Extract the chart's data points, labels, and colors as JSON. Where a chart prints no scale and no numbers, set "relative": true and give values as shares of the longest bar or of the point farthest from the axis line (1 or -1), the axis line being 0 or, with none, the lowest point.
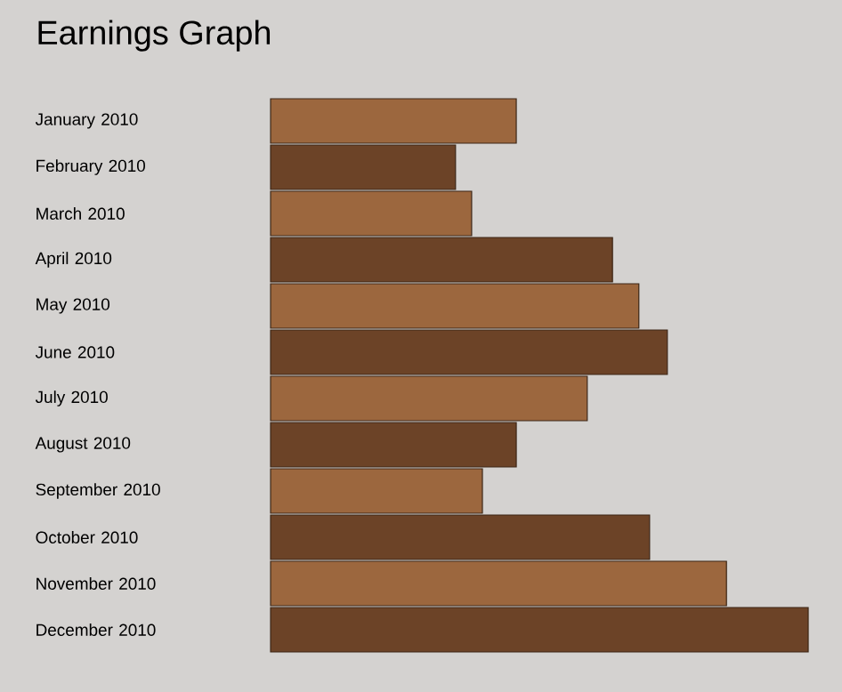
{
  "chart_data": {
    "type": "bar",
    "orientation": "horizontal",
    "relative": true,
    "title": "Earnings Graph",
    "categories": [
      "January 2010",
      "February 2010",
      "March 2010",
      "April 2010",
      "May 2010",
      "June 2010",
      "July 2010",
      "August 2010",
      "September 2010",
      "October 2010",
      "November 2010",
      "December 2010"
    ],
    "values": [
      0.457,
      0.344,
      0.374,
      0.636,
      0.685,
      0.738,
      0.589,
      0.457,
      0.394,
      0.705,
      0.848,
      1
    ],
    "colors": [
      "#9c673e",
      "#6c4327",
      "#9c673e",
      "#6c4327",
      "#9c673e",
      "#6c4327",
      "#9c673e",
      "#6c4327",
      "#9c673e",
      "#6c4327",
      "#9c673e",
      "#6c4327"
    ]
  }
}
